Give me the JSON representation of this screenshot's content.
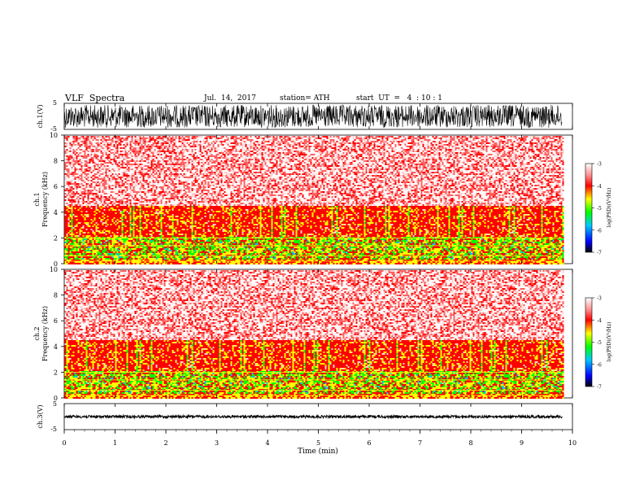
{
  "header": {
    "title": "VLF  Spectra",
    "date": "Jul.  14,  2017",
    "station": "station= ATH",
    "start": "start  UT  =   4  : 10 : 1"
  },
  "chart_data": [
    {
      "type": "line",
      "panel": "ch1-waveform",
      "ylabel": "ch.1(V)",
      "ylim": [
        -5,
        5
      ],
      "yticks": [
        "5",
        "-5"
      ],
      "xlim": [
        0,
        10
      ],
      "color": "#000000"
    },
    {
      "type": "heatmap",
      "panel": "ch1-spectrogram",
      "ylabel": "ch.1\nFrequency (kHz)",
      "ylim": [
        0,
        10
      ],
      "yticks": [
        "0",
        "2",
        "4",
        "6",
        "8",
        "10"
      ],
      "xlim": [
        0,
        9.8
      ],
      "colorbar": {
        "label": "log(PSD)(V²/Hz)",
        "range": [
          -7,
          -3
        ],
        "ticks": [
          "-3",
          "-4",
          "-5",
          "-6",
          "-7"
        ]
      }
    },
    {
      "type": "heatmap",
      "panel": "ch2-spectrogram",
      "ylabel": "ch.2\nFrequency (kHz)",
      "ylim": [
        0,
        10
      ],
      "yticks": [
        "0",
        "2",
        "4",
        "6",
        "8",
        "10"
      ],
      "xlim": [
        0,
        9.8
      ],
      "colorbar": {
        "label": "log(PSD)(V²/Hz)",
        "range": [
          -7,
          -3
        ],
        "ticks": [
          "-3",
          "-4",
          "-5",
          "-6",
          "-7"
        ]
      }
    },
    {
      "type": "line",
      "panel": "ch3-waveform",
      "ylabel": "ch.3(V)",
      "ylim": [
        -5,
        5
      ],
      "yticks": [
        "5",
        "-5"
      ],
      "xlim": [
        0,
        10
      ],
      "xlabel": "Time  (min)",
      "xticks": [
        "0",
        "1",
        "2",
        "3",
        "4",
        "5",
        "6",
        "7",
        "8",
        "9",
        "10"
      ],
      "color": "#000000"
    }
  ],
  "labels": {
    "ch1_axis": "ch.1(V)",
    "ch1_freq_top": "ch.1",
    "ch1_freq_bottom": "Frequency  (kHz)",
    "ch2_freq_top": "ch.2",
    "ch2_freq_bottom": "Frequency  (kHz)",
    "ch3_axis": "ch.3(V)",
    "colorbar1": "log(PSD)(V²/Hz)",
    "colorbar2": "log(PSD)(V²/Hz)",
    "xlabel": "Time  (min)"
  },
  "colors": {
    "scale": [
      "#000000",
      "#0000ff",
      "#00c0ff",
      "#00ff00",
      "#ffff00",
      "#ff0000",
      "#ffffff"
    ]
  }
}
